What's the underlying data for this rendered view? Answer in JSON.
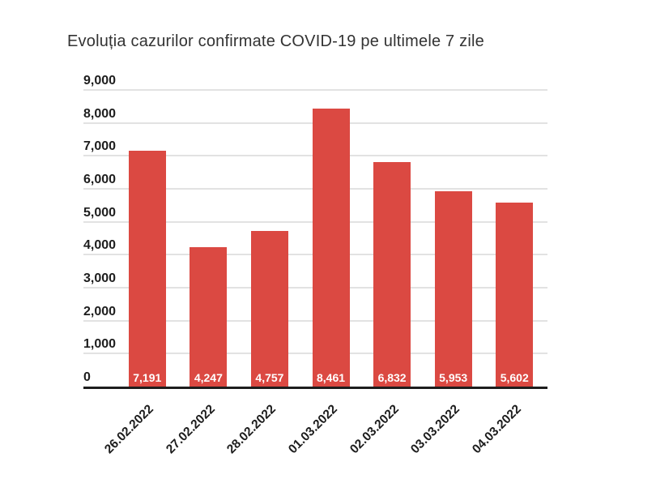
{
  "title": "Evoluția cazurilor confirmate COVID-19 pe ultimele 7 zile",
  "colors": {
    "background": "#ffffff",
    "bar": "#db4942",
    "gridline": "#e2e2e2",
    "axis_and_labels": "#1d1d1d",
    "value_label": "#ffffff",
    "title": "#333333"
  },
  "chart_data": {
    "type": "bar",
    "title": "Evoluția cazurilor confirmate COVID-19 pe ultimele 7 zile",
    "categories": [
      "26.02.2022",
      "27.02.2022",
      "28.02.2022",
      "01.03.2022",
      "02.03.2022",
      "03.03.2022",
      "04.03.2022"
    ],
    "values": [
      7191,
      4247,
      4757,
      8461,
      6832,
      5953,
      5602
    ],
    "value_labels": [
      "7,191",
      "4,247",
      "4,757",
      "8,461",
      "6,832",
      "5,953",
      "5,602"
    ],
    "yticks": [
      0,
      1000,
      2000,
      3000,
      4000,
      5000,
      6000,
      7000,
      8000,
      9000
    ],
    "ytick_labels": [
      "0",
      "1,000",
      "2,000",
      "3,000",
      "4,000",
      "5,000",
      "6,000",
      "7,000",
      "8,000",
      "9,000"
    ],
    "ylim": [
      0,
      9000
    ],
    "xlabel": "",
    "ylabel": "",
    "grid": true,
    "legend": false,
    "value_label_position": "inside-bottom",
    "xtick_rotation_deg": -45
  }
}
